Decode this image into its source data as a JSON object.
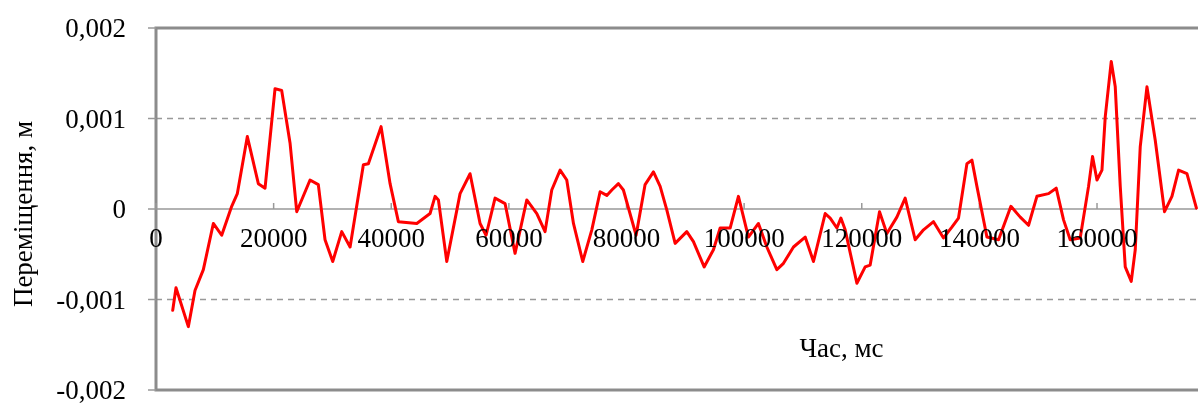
{
  "chart_data": {
    "type": "line",
    "xlabel": "Час, мс",
    "ylabel": "Переміщення, м",
    "xlim": [
      0,
      177000
    ],
    "ylim": [
      -0.002,
      0.002
    ],
    "xticks": [
      0,
      20000,
      40000,
      60000,
      80000,
      100000,
      120000,
      140000,
      160000
    ],
    "yticks": [
      {
        "value": -0.002,
        "label": "-0,002"
      },
      {
        "value": -0.001,
        "label": "-0,001"
      },
      0,
      {
        "value": 0.001,
        "label": "0,001"
      },
      {
        "value": 0.002,
        "label": "0,002"
      }
    ],
    "grid": "y",
    "marker": "none",
    "line_style": "solid",
    "series": [
      {
        "color": "#ff0000",
        "x": [
          2840,
          3400,
          5500,
          6630,
          8050,
          9750,
          11170,
          12870,
          13830,
          15530,
          17400,
          18540,
          20240,
          21370,
          22790,
          23930,
          26190,
          27600,
          28740,
          30050,
          31580,
          33000,
          35260,
          36110,
          38270,
          39800,
          41210,
          44340,
          46600,
          47450,
          48020,
          49440,
          51700,
          53400,
          55100,
          56120,
          57650,
          59350,
          61050,
          63040,
          64750,
          66150,
          67290,
          68710,
          69840,
          70980,
          72560,
          74100,
          75510,
          76650,
          77500,
          78620,
          79470,
          81630,
          83160,
          84580,
          85720,
          86850,
          88270,
          90250,
          91380,
          93200,
          94780,
          95920,
          97620,
          99030,
          100730,
          102430,
          103860,
          105560,
          106690,
          108390,
          110380,
          111790,
          113780,
          114630,
          115770,
          116450,
          117180,
          119170,
          120580,
          121430,
          123020,
          124270,
          125970,
          127380,
          129080,
          130500,
          132200,
          133900,
          135320,
          136450,
          137880,
          138730,
          139580,
          141280,
          143260,
          145360,
          146950,
          148360,
          149780,
          151760,
          153060,
          154310,
          155440,
          157140,
          158560,
          159240,
          159990,
          160840,
          161400,
          162420,
          163100,
          163950,
          164800,
          165820,
          166500,
          167350,
          168490,
          169900,
          171480,
          172740,
          173870,
          175290,
          176900
        ],
        "values": [
          -0.00112,
          -0.00087,
          -0.0013,
          -0.0009,
          -0.00067,
          -0.00016,
          -0.00029,
          3e-05,
          0.00017,
          0.0008,
          0.00028,
          0.00023,
          0.00133,
          0.00131,
          0.00073,
          -3e-05,
          0.00032,
          0.00027,
          -0.00034,
          -0.00058,
          -0.00025,
          -0.00042,
          0.00049,
          0.0005,
          0.00091,
          0.00028,
          -0.00014,
          -0.00016,
          -5e-05,
          0.00014,
          0.0001,
          -0.00058,
          0.00017,
          0.00039,
          -0.00016,
          -0.00029,
          0.00012,
          6e-05,
          -0.00049,
          0.0001,
          -5e-05,
          -0.00025,
          0.00021,
          0.00043,
          0.00032,
          -0.00016,
          -0.00058,
          -0.00023,
          0.00019,
          0.00015,
          0.00021,
          0.00028,
          0.00021,
          -0.00029,
          0.00027,
          0.00041,
          0.00025,
          -1e-05,
          -0.00038,
          -0.00025,
          -0.00036,
          -0.00064,
          -0.00045,
          -0.00021,
          -0.00021,
          0.00014,
          -0.00031,
          -0.00016,
          -0.00042,
          -0.00067,
          -0.0006,
          -0.00042,
          -0.00031,
          -0.00058,
          -5e-05,
          -0.0001,
          -0.00021,
          -0.0001,
          -0.00023,
          -0.00082,
          -0.00064,
          -0.00062,
          -3e-05,
          -0.00027,
          -9e-05,
          0.00012,
          -0.00034,
          -0.00023,
          -0.00014,
          -0.00032,
          -0.0002,
          -0.0001,
          0.0005,
          0.00054,
          0.00025,
          -0.00031,
          -0.00034,
          3e-05,
          -9e-05,
          -0.00018,
          0.00014,
          0.00017,
          0.00023,
          -0.00012,
          -0.00034,
          -0.00032,
          0.00025,
          0.00058,
          0.00032,
          0.00043,
          0.00102,
          0.00163,
          0.00135,
          0.00025,
          -0.00064,
          -0.0008,
          -0.00045,
          0.00069,
          0.00135,
          0.00076,
          -3e-05,
          0.00014,
          0.00043,
          0.00039,
          1e-05
        ]
      }
    ]
  }
}
